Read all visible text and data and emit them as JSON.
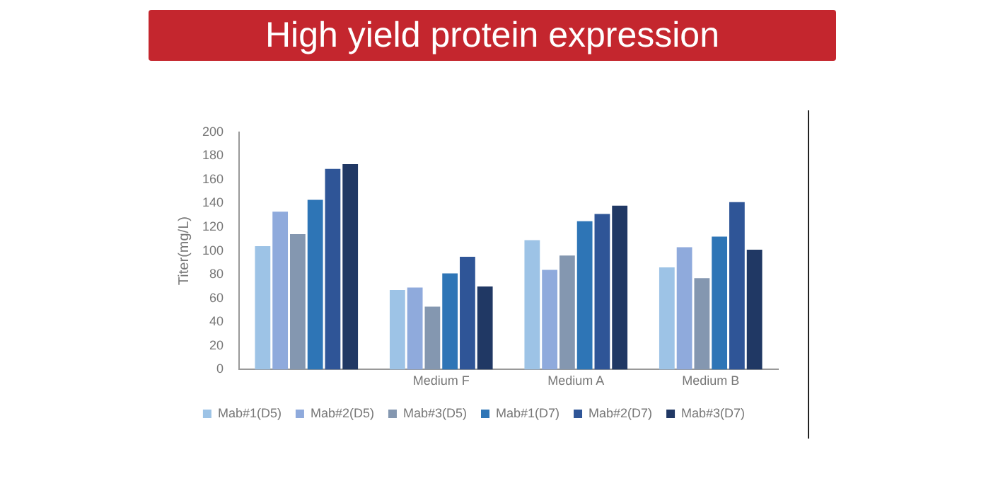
{
  "chart_data": {
    "type": "bar",
    "title": "High yield protein expression",
    "ylabel": "Titer(mg/L)",
    "categories": [
      null,
      "Medium F",
      "Medium A",
      "Medium B"
    ],
    "series": [
      {
        "name": "Mab#1(D5)",
        "color": "#9dc3e6",
        "values": [
          104,
          67,
          109,
          86
        ]
      },
      {
        "name": "Mab#2(D5)",
        "color": "#8faadc",
        "values": [
          133,
          69,
          84,
          103
        ]
      },
      {
        "name": "Mab#3(D5)",
        "color": "#8497b0",
        "values": [
          114,
          53,
          96,
          77
        ]
      },
      {
        "name": "Mab#1(D7)",
        "color": "#2e75b6",
        "values": [
          143,
          81,
          125,
          112
        ]
      },
      {
        "name": "Mab#2(D7)",
        "color": "#2f5597",
        "values": [
          169,
          95,
          131,
          141
        ]
      },
      {
        "name": "Mab#3(D7)",
        "color": "#203864",
        "values": [
          173,
          70,
          138,
          101
        ]
      }
    ],
    "ylim": [
      0,
      200
    ],
    "yticks": [
      0,
      20,
      40,
      60,
      80,
      100,
      120,
      140,
      160,
      180,
      200
    ],
    "grid": false,
    "legend": "bottom"
  }
}
